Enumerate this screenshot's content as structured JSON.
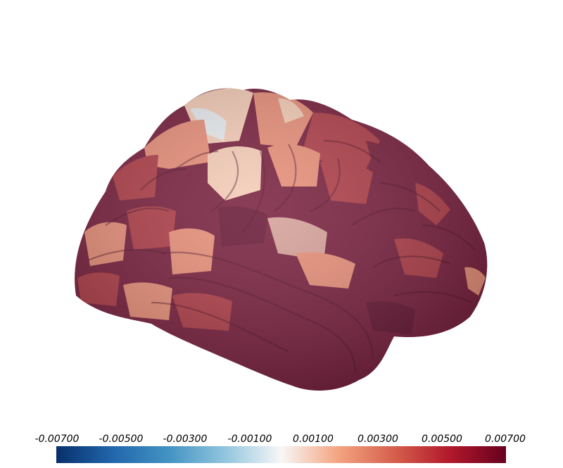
{
  "colorbar": {
    "ticks": [
      "-0.00700",
      "-0.00500",
      "-0.00300",
      "-0.00100",
      "0.00100",
      "0.00300",
      "0.00500",
      "0.00700"
    ],
    "colors": [
      "#08306b",
      "#2166ac",
      "#4393c3",
      "#92c5de",
      "#f7f7f7",
      "#f4a582",
      "#d6604d",
      "#b2182b",
      "#67001f"
    ]
  },
  "brain": {
    "base_color": "#7a2340",
    "dark_color": "#6a1c38",
    "mid_color": "#b0404a",
    "light_color": "#e8907a",
    "pale_color": "#f6cdb8",
    "white_color": "#e9ecf0"
  }
}
